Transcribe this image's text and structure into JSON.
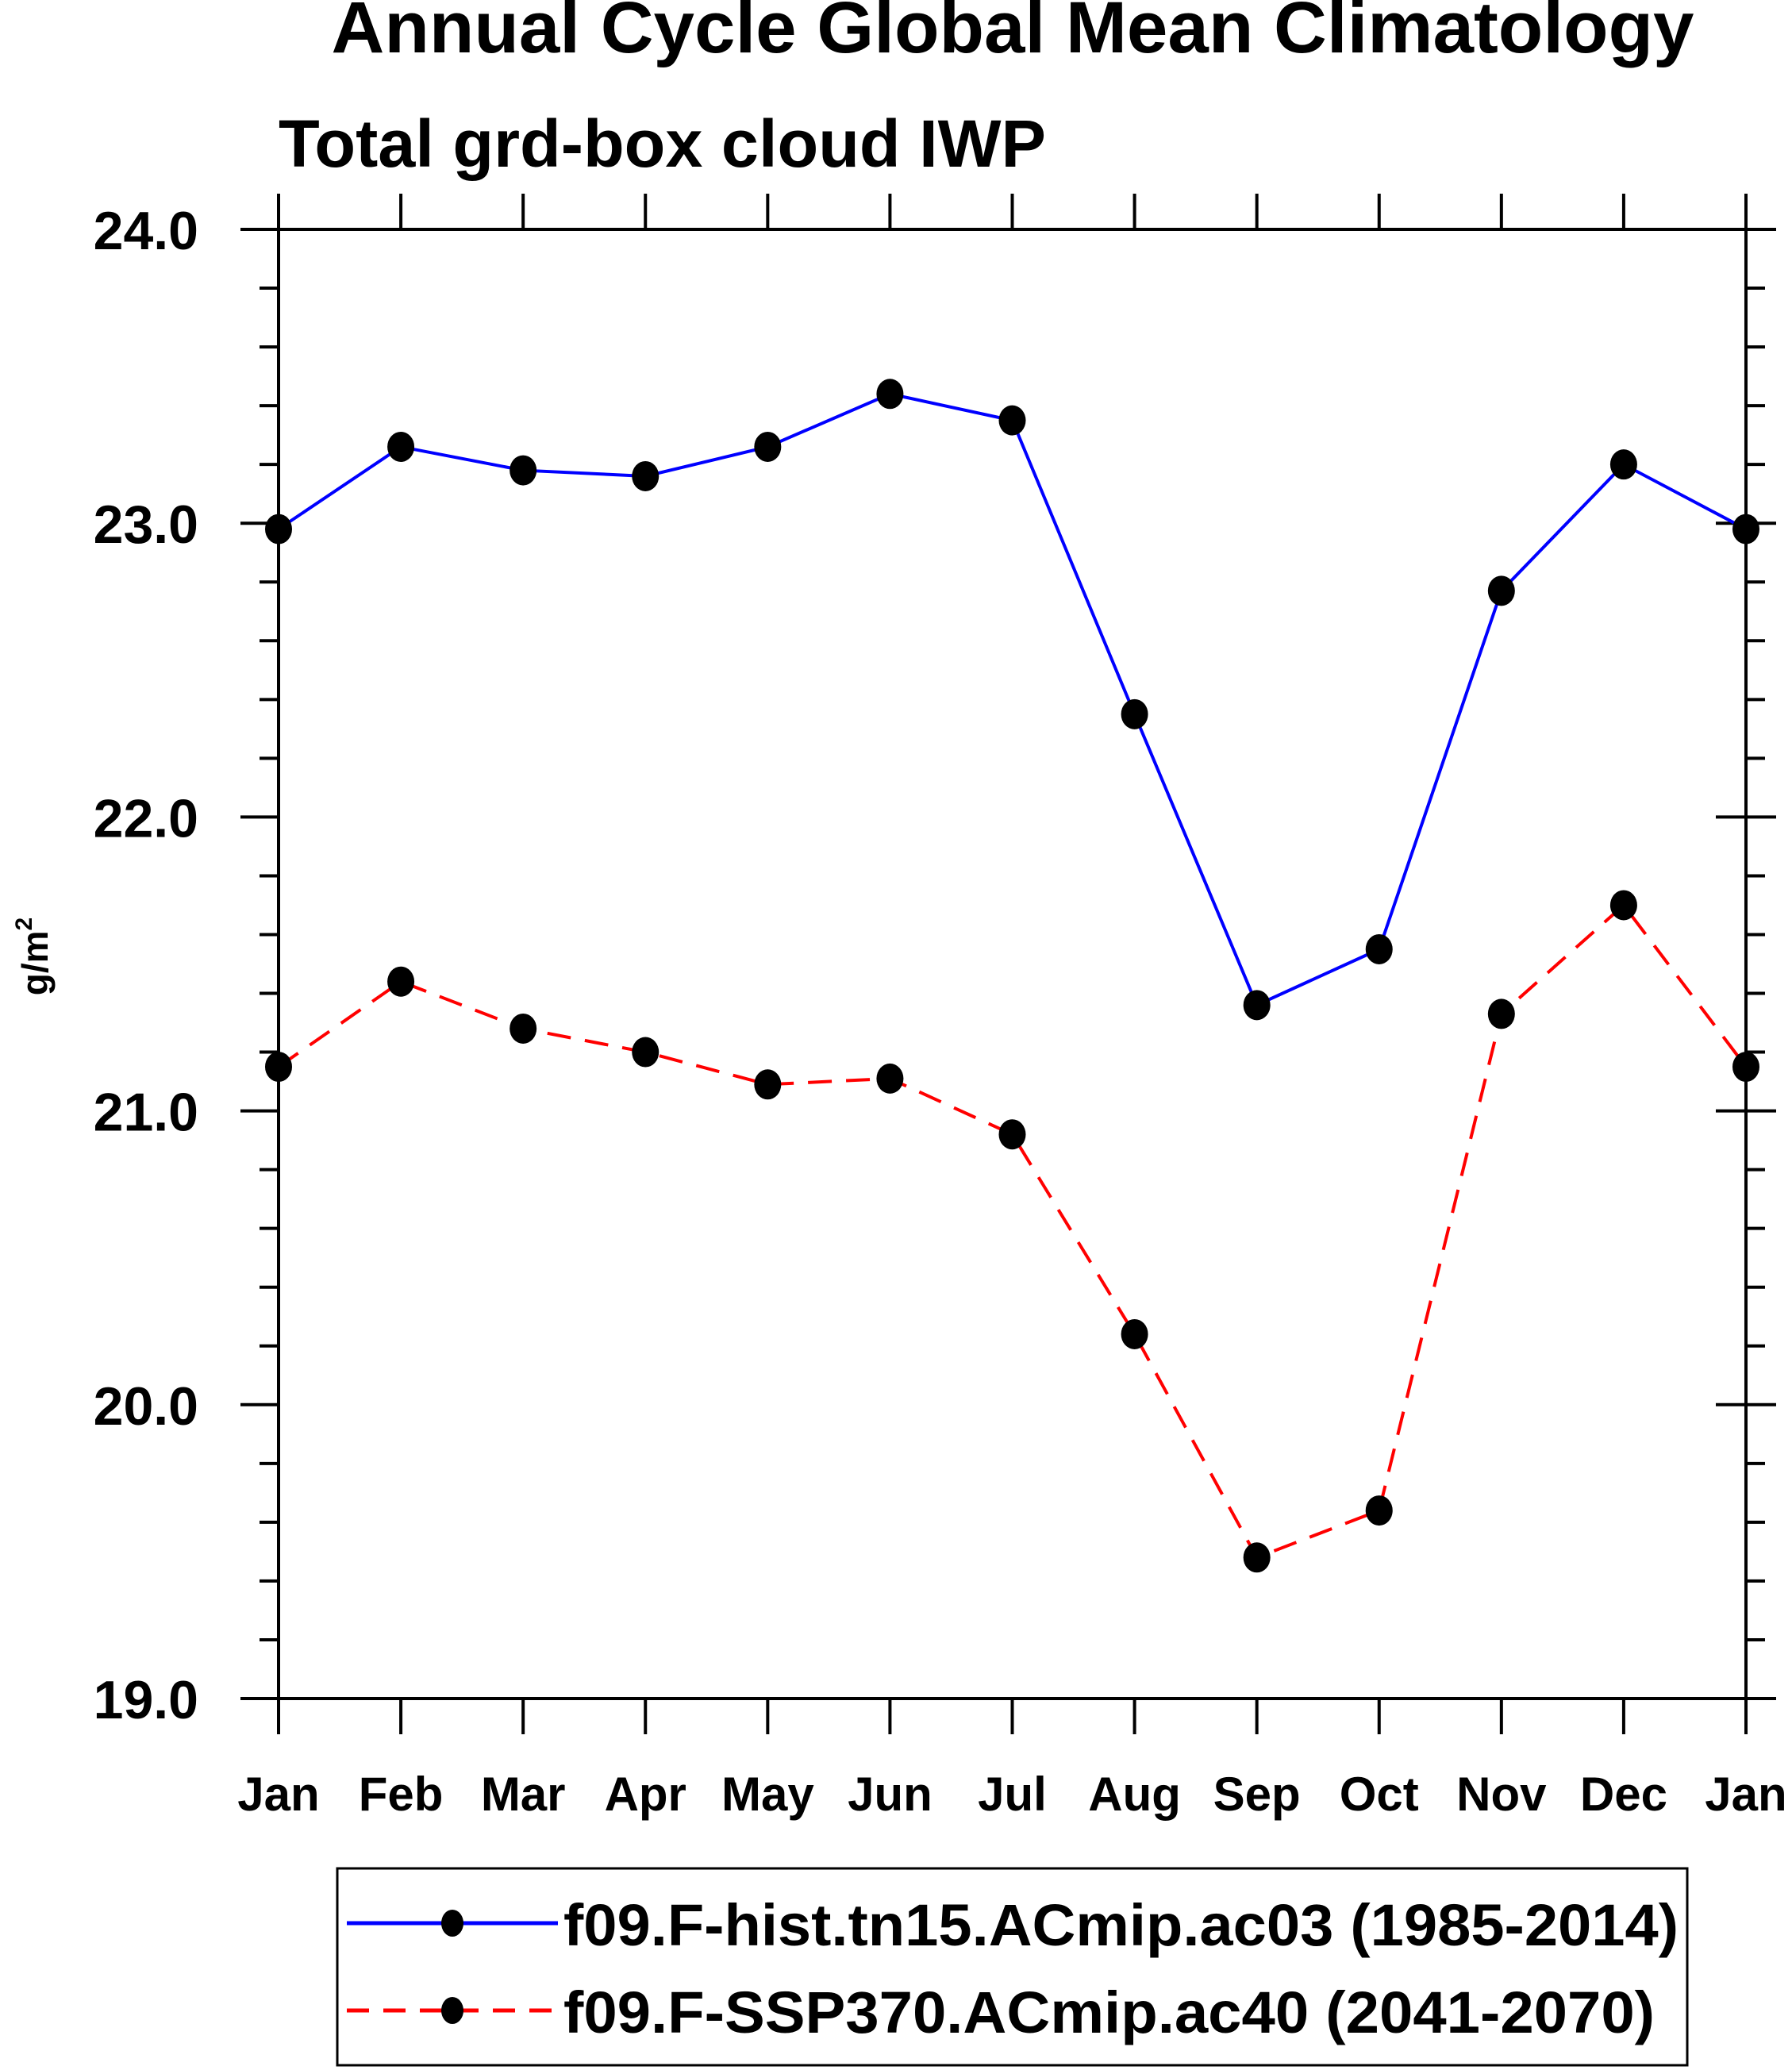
{
  "chart_data": {
    "type": "line",
    "title": "Annual Cycle Global Mean Climatology",
    "subtitle": "Total grd-box cloud IWP",
    "xlabel": "",
    "ylabel": "g/m",
    "ylabel_superscript": "2",
    "categories": [
      "Jan",
      "Feb",
      "Mar",
      "Apr",
      "May",
      "Jun",
      "Jul",
      "Aug",
      "Sep",
      "Oct",
      "Nov",
      "Dec",
      "Jan"
    ],
    "ylim": [
      19.0,
      24.0
    ],
    "yticks": [
      "19.0",
      "20.0",
      "21.0",
      "22.0",
      "23.0",
      "24.0"
    ],
    "yminor_step": 0.2,
    "grid": false,
    "legend_placement": "bottom",
    "series": [
      {
        "name": "f09.F-hist.tn15.ACmip.ac03 (1985-2014)",
        "color": "#0000ff",
        "dash": "solid",
        "values": [
          22.98,
          23.26,
          23.18,
          23.16,
          23.26,
          23.44,
          23.35,
          22.35,
          21.36,
          21.55,
          22.77,
          23.2,
          22.98
        ]
      },
      {
        "name": "f09.F-SSP370.ACmip.ac40 (2041-2070)",
        "color": "#ff0000",
        "dash": "dashed",
        "values": [
          21.15,
          21.44,
          21.28,
          21.2,
          21.09,
          21.11,
          20.92,
          20.24,
          19.48,
          19.64,
          21.33,
          21.7,
          21.15
        ]
      }
    ]
  }
}
